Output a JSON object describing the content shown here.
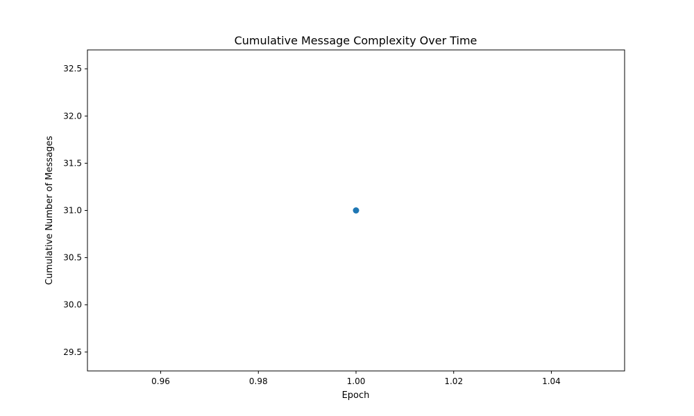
{
  "chart_data": {
    "type": "scatter",
    "title": "Cumulative Message Complexity Over Time",
    "xlabel": "Epoch",
    "ylabel": "Cumulative Number of Messages",
    "xlim": [
      0.945,
      1.055
    ],
    "ylim": [
      29.3,
      32.7
    ],
    "x_ticks": [
      0.96,
      0.98,
      1.0,
      1.02,
      1.04
    ],
    "x_tick_labels": [
      "0.96",
      "0.98",
      "1.00",
      "1.02",
      "1.04"
    ],
    "y_ticks": [
      29.5,
      30.0,
      30.5,
      31.0,
      31.5,
      32.0,
      32.5
    ],
    "y_tick_labels": [
      "29.5",
      "30.0",
      "30.5",
      "31.0",
      "31.5",
      "32.0",
      "32.5"
    ],
    "grid": false,
    "points": [
      {
        "x": 1.0,
        "y": 31.0
      }
    ],
    "color": "#1f77b4"
  }
}
